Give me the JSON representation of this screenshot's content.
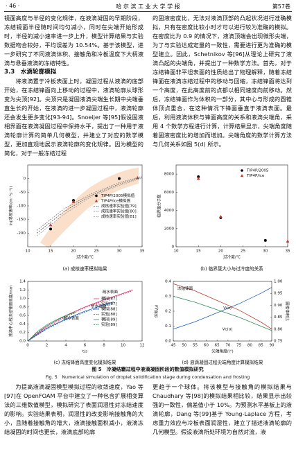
{
  "header": {
    "page": "· 46 ·",
    "journal": "哈 尔 滨 工 业 大 学 学 报",
    "volume": "第57卷"
  },
  "top_left": {
    "para1": "镜面高度与半径的变化规律，在液滴凝固的早期阶段，冻结镜面半径随时间均匀减小，同时在尖端开始形成时，半径的减小速率进一步上升，模型计算结果与实验数据吻合较好，平均误差为 10.54%。基于该模型，进一步研究了不同液滴体积、接触角和冷板温度下大柄液滴与悬垂液滴的冻结特性。",
    "section": "3.3　水滴轮廓模拟",
    "para2": "将液滴置于冷板表面上时，凝固过程从液滴的底部开始，在冻结锋面向上移动的过程中，液滴轮廓从球形变为尖顶[92]。尖顶只是凝固液滴尖端生长期中尖端垂直生长的开始，在液滴的进一步凝固过程中，液滴轮廓还会发生更多变化[93-94]。Snoeijer 等[95]假设固液相界面在液滴凝固过程中保持水平，提出了一种用于液滴轮廓计算的简单几何模型，并建立了对应的数学模型，更加直观地展示液滴轮廓的变化规律。因为模型的简化，对于一般冻结过程"
  },
  "top_right": {
    "para1": "的固液密度比，无法对液滴顶部的凸起状况进行准确模拟，只有在密度比较小时才可以进行较为准确的模拟。在密度比为 0.9 的情况下，液滴顶端会出现微形尖端，为了与实验达成定量的一致性，需要进行更为准确的模型建立。因此，Schetnikov 等[96]从理论上研究了液滴凸起的尖端角，并提出了一种数学方法。首先，对于冻结锋面非平坦表面的性质给出了物理解释，随着冻结锋面在液滴冻结过程中的移动与回缩，冻结锋面将达到一个高度，在此高度前的点都以相同速度向前移动。然后，冻结锋面作为体积的一部分，其中心与形成的圆锥体顶点重合，在这种情况下锋面垂直于液滴表面。最后，利用液滴体积与锋面高度的关系和液滴尖端角，采用 4 个数学方程进行计算，计算结果显示，尖端角度随着固液密度比的增加而增加。尖端角度的数学计算方法与几何关系如图 5(d) 所示。"
  },
  "figure": {
    "caption_cn": "图 5　冷凝结霜过程中液滴凝固阶段的数值模拟研究",
    "caption_en": "Fig. 5　Numerical simulation of droplet solidification stage during condensation and frosting"
  },
  "chart_data": [
    {
      "type": "scatter",
      "title": "(a) 成核速率模拟结果",
      "x_label": "过冷度/℃",
      "y_label": "ln(成核速率/(m⁻³s⁻¹))",
      "xlim": [
        10,
        35
      ],
      "ylim": [
        -250,
        50
      ],
      "xticks": [
        10,
        15,
        20,
        25,
        30,
        35
      ],
      "yticks": [
        -200,
        -150,
        -100,
        -50,
        0
      ],
      "legend": "center right",
      "series": [
        {
          "name": "TIP4P/2005模拟值",
          "color": "#000000",
          "marker": "circle",
          "x": [
            15,
            20,
            30
          ],
          "values": [
            -185,
            -80,
            0
          ]
        },
        {
          "name": "TIP4P/ice模拟值",
          "color": "#c0392b",
          "marker": "triangle",
          "x": [
            15,
            20,
            34
          ],
          "values": [
            -170,
            -85,
            3
          ]
        },
        {
          "name": "成核速率实验值[79]",
          "color": "#555555",
          "style": "dashed",
          "x": [
            12,
            18,
            24,
            30,
            35
          ],
          "values": [
            -200,
            -120,
            -60,
            -20,
            5
          ]
        },
        {
          "name": "成核速率实验值[80]",
          "color": "#777777",
          "style": "dashed",
          "x": [
            12,
            18,
            24,
            30,
            35
          ],
          "values": [
            -190,
            -110,
            -55,
            -15,
            8
          ]
        },
        {
          "name": "成核速率实验值[81]",
          "color": "#999999",
          "style": "dashed",
          "x": [
            12,
            18,
            24,
            30,
            35
          ],
          "values": [
            -210,
            -130,
            -65,
            -25,
            2
          ]
        }
      ]
    },
    {
      "type": "scatter",
      "title": "(b) 临界簇大小与过冷度的关系",
      "x_label": "过冷度/℃",
      "y_label": "临界簇分子数",
      "xlim": [
        10,
        35
      ],
      "ylim": [
        0,
        9000
      ],
      "xticks": [
        10,
        15,
        20,
        25,
        30,
        35
      ],
      "yticks": [
        0,
        2000,
        4000,
        6000,
        8000
      ],
      "legend": "upper right",
      "series": [
        {
          "name": "TIP4P/2005",
          "color": "#000000",
          "marker": "circle",
          "x": [
            15,
            20,
            30
          ],
          "values": [
            7700,
            3200,
            700
          ]
        },
        {
          "name": "TIP4P/ice",
          "color": "#c0392b",
          "marker": "triangle",
          "x": [
            15,
            20,
            35
          ],
          "values": [
            7500,
            3300,
            600
          ]
        }
      ]
    },
    {
      "type": "line",
      "title": "(c) 冻结锋面高度变化模拟结果",
      "x_label": "t/s",
      "y_label": "液滴中心线冻结锋面高度/mm",
      "xlim": [
        0,
        12
      ],
      "ylim": [
        0,
        1.4
      ],
      "xticks": [
        0,
        2,
        4,
        6,
        8,
        10,
        12
      ],
      "yticks": [
        {
          "value": 0,
          "label": "0.0"
        },
        0.2,
        0.4,
        0.6,
        0.8,
        {
          "value": 1,
          "label": "1.0"
        },
        1.2,
        1.4
      ],
      "legend": "center right",
      "annotations": [
        "疏水表面",
        "亲水表面",
        "超冷表面"
      ],
      "series": [
        {
          "name": "模拟[87]",
          "color": "#d6336c",
          "x": [
            0,
            2,
            4,
            6,
            8,
            10,
            11
          ],
          "values": [
            0,
            0.35,
            0.6,
            0.8,
            0.97,
            1.12,
            1.2
          ]
        },
        {
          "name": "实验[87]",
          "color": "#d6336c",
          "style": "dashed",
          "x": [
            0,
            2,
            4,
            6,
            8,
            10,
            11
          ],
          "values": [
            0,
            0.32,
            0.57,
            0.78,
            0.95,
            1.1,
            1.18
          ]
        },
        {
          "name": "模拟[88]",
          "color": "#1f5fbf",
          "x": [
            0,
            2,
            4,
            6,
            8,
            9
          ],
          "values": [
            0,
            0.3,
            0.52,
            0.7,
            0.85,
            0.92
          ]
        },
        {
          "name": "实验[88]",
          "color": "#1f5fbf",
          "style": "dashed",
          "x": [
            0,
            2,
            4,
            6,
            8,
            9
          ],
          "values": [
            0,
            0.28,
            0.5,
            0.68,
            0.82,
            0.9
          ]
        },
        {
          "name": "模拟[89]",
          "color": "#2e8b57",
          "x": [
            0,
            1,
            2,
            3,
            4,
            5
          ],
          "values": [
            0,
            0.22,
            0.38,
            0.5,
            0.6,
            0.68
          ]
        },
        {
          "name": "实验[89]",
          "color": "#2e8b57",
          "style": "dashed",
          "x": [
            0,
            1,
            2,
            3,
            4,
            5
          ],
          "values": [
            0,
            0.2,
            0.35,
            0.48,
            0.58,
            0.66
          ]
        }
      ]
    },
    {
      "type": "line",
      "title": "(d) 液滴凝固过程尖端角度计算模拟结果",
      "x_label": "尖端角度/(°)",
      "y_label": "体积/μl",
      "y2_label": "圆锥体积比",
      "xlim": [
        45,
        90
      ],
      "ylim": [
        0,
        0.4
      ],
      "y2lim": [
        0.75,
        1
      ],
      "xticks": [
        45,
        50,
        55,
        60,
        65,
        70,
        75,
        80,
        85,
        90
      ],
      "yticks": [
        {
          "value": 0,
          "label": "0.0"
        },
        0.1,
        0.2,
        0.3,
        0.4
      ],
      "y2ticks": [
        0.75,
        {
          "value": 0.8,
          "label": "0.80"
        },
        0.85,
        {
          "value": 0.9,
          "label": "0.90"
        },
        0.95,
        {
          "value": 1,
          "label": "1.00"
        }
      ],
      "legend": "none",
      "annotations": [
        "冻结锋面",
        "V(α)",
        "Vc(α)"
      ],
      "series": [
        {
          "name": "V(α)",
          "color": "#1f5fbf",
          "x": [
            45,
            55,
            65,
            75,
            85,
            90
          ],
          "values": [
            0.08,
            0.13,
            0.19,
            0.25,
            0.32,
            0.36
          ]
        },
        {
          "name": "Vc(α)",
          "color": "#2e8b57",
          "x": [
            45,
            55,
            65,
            75,
            85,
            90
          ],
          "values": [
            0.3,
            0.26,
            0.21,
            0.16,
            0.1,
            0.07
          ]
        },
        {
          "name": "圆锥体积比",
          "color": "#c0392b",
          "axis": "y2",
          "x": [
            45,
            55,
            65,
            75,
            85,
            90
          ],
          "values": [
            0.99,
            0.96,
            0.92,
            0.88,
            0.83,
            0.8
          ]
        }
      ]
    }
  ],
  "bottom_left": {
    "para": "为提高液滴凝固模型模拟过程的收敛速度，Yao 等[97]在 OpenFOAM 平台中建立了一种包含扩展相变算法的三维数值模型，模拟研究了表面润湿性对冻结速度的影响。实验结果表明，润湿性的改变影响接触角的大小，且随着接触角的增大，液滴接触面积减小，液滴冻结凝固的时间也更长，液滴底部轮廓"
  },
  "bottom_right": {
    "para": "更趋于一个球体。将该模型与接触角的模拟结果与 Chaudhary 等[98]的模拟结果相比较，结果显示出较强的一致性，偏差值小于 10%。为预测水平基板上的液滴轮廓，Dang 等[99]基于 Young-Laplace 方程，考虑重力效应与冷板表面润湿性，建立了描述液滴轮廓的几何模型。假设液滴所处环境为自然对流，液"
  }
}
